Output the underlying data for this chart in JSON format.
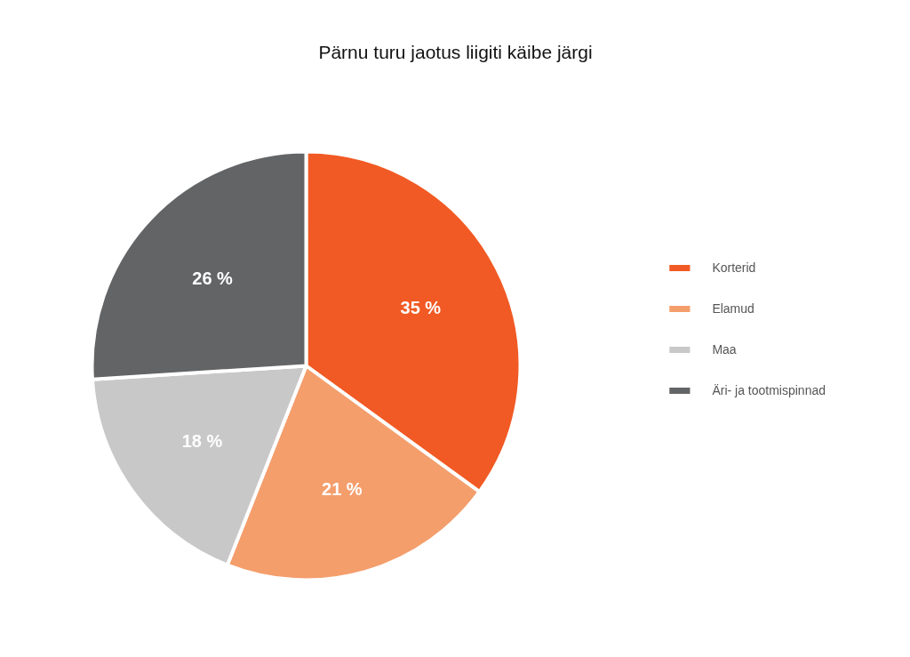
{
  "chart_data": {
    "type": "pie",
    "title": "Pärnu turu jaotus liigiti käibe järgi",
    "categories": [
      "Korterid",
      "Elamud",
      "Maa",
      "Äri- ja tootmispinnad"
    ],
    "values": [
      35,
      21,
      18,
      26
    ],
    "colors": [
      "#f15a24",
      "#f49e6c",
      "#c8c8c8",
      "#636466"
    ],
    "value_labels": [
      "35 %",
      "21 %",
      "18 %",
      "26 %"
    ],
    "legend": "right"
  }
}
